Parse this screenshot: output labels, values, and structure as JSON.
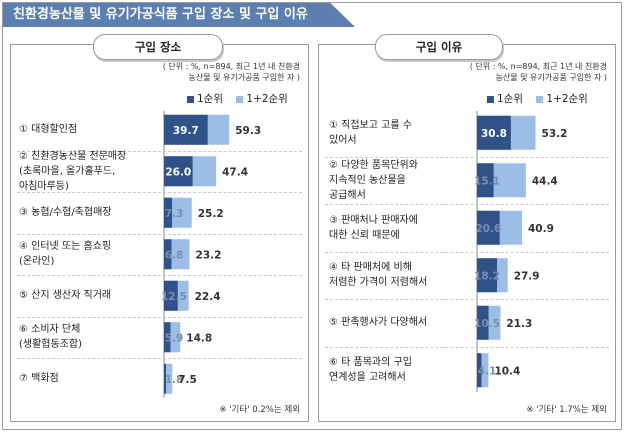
{
  "page_title": "친환경농산물 및 유기가공식품 구입 장소 및 구입 이유",
  "chart_data": [
    {
      "type": "bar",
      "title": "구입 장소",
      "unit_note": [
        "( 단위 : %, n=894, 최근 1년 내 친환경",
        "농산물 및 유기가공품 구입한 자 )"
      ],
      "legend": [
        "1순위",
        "1+2순위"
      ],
      "categories": [
        [
          "① 대형할인점"
        ],
        [
          "② 친환경농산물 전문매장",
          "(초록마을, 올가홀푸드,",
          "아침마루등)"
        ],
        [
          "③ 농협/수협/축협매장"
        ],
        [
          "④ 인터넷 또는 홈쇼핑",
          "(온라인)"
        ],
        [
          "⑤ 산지 생산자 직거래"
        ],
        [
          "⑥ 소비자 단체",
          "(생활협동조합)"
        ],
        [
          "⑦ 백화점"
        ]
      ],
      "series": [
        {
          "name": "1순위",
          "values": [
            39.7,
            26.0,
            7.3,
            6.8,
            12.5,
            5.9,
            1.8
          ]
        },
        {
          "name": "1+2순위",
          "values": [
            59.3,
            47.4,
            25.2,
            23.2,
            22.4,
            14.8,
            7.5
          ]
        }
      ],
      "value_labels_first": [
        "39.7",
        "26.0",
        "7.3",
        "6.8",
        "12.5",
        "5.9",
        "1.8"
      ],
      "value_labels_total": [
        "59.3",
        "47.4",
        "25.2",
        "23.2",
        "22.4",
        "14.8",
        "7.5"
      ],
      "footnote": "※ '기타' 0.2%는 제외"
    },
    {
      "type": "bar",
      "title": "구입 이유",
      "unit_note": [
        "( 단위 : %, n=894, 최근 1년 내 친환경",
        "농산물 및 유기가공품 구입한 자 )"
      ],
      "legend": [
        "1순위",
        "1+2순위"
      ],
      "categories": [
        [
          "① 직접보고 고를 수",
          "있어서"
        ],
        [
          "② 다양한 품목단위와",
          "지속적인 농산물을",
          "공급해서"
        ],
        [
          "③ 판매처나 판매자에",
          "대한 신뢰 때문에"
        ],
        [
          "④ 타 판매처에 비해",
          "저렴한 가격이 저렴해서"
        ],
        [
          "⑤ 판촉행사가 다양해서"
        ],
        [
          "⑥ 타 품목과의 구입",
          "연계성을 고려해서"
        ]
      ],
      "series": [
        {
          "name": "1순위",
          "values": [
            30.8,
            15.1,
            20.6,
            18.2,
            10.5,
            4.1
          ]
        },
        {
          "name": "1+2순위",
          "values": [
            53.2,
            44.4,
            40.9,
            27.9,
            21.3,
            10.4
          ]
        }
      ],
      "value_labels_first": [
        "30.8",
        "15.1",
        "20.6",
        "18.2",
        "10.5",
        "4.1"
      ],
      "value_labels_total": [
        "53.2",
        "44.4",
        "40.9",
        "27.9",
        "21.3",
        "10.4"
      ],
      "footnote": "※ '기타' 1.7%는 제외"
    }
  ],
  "colors": {
    "first": "#2f5288",
    "total": "#9cbde6",
    "banner": "#5b7fb0"
  }
}
